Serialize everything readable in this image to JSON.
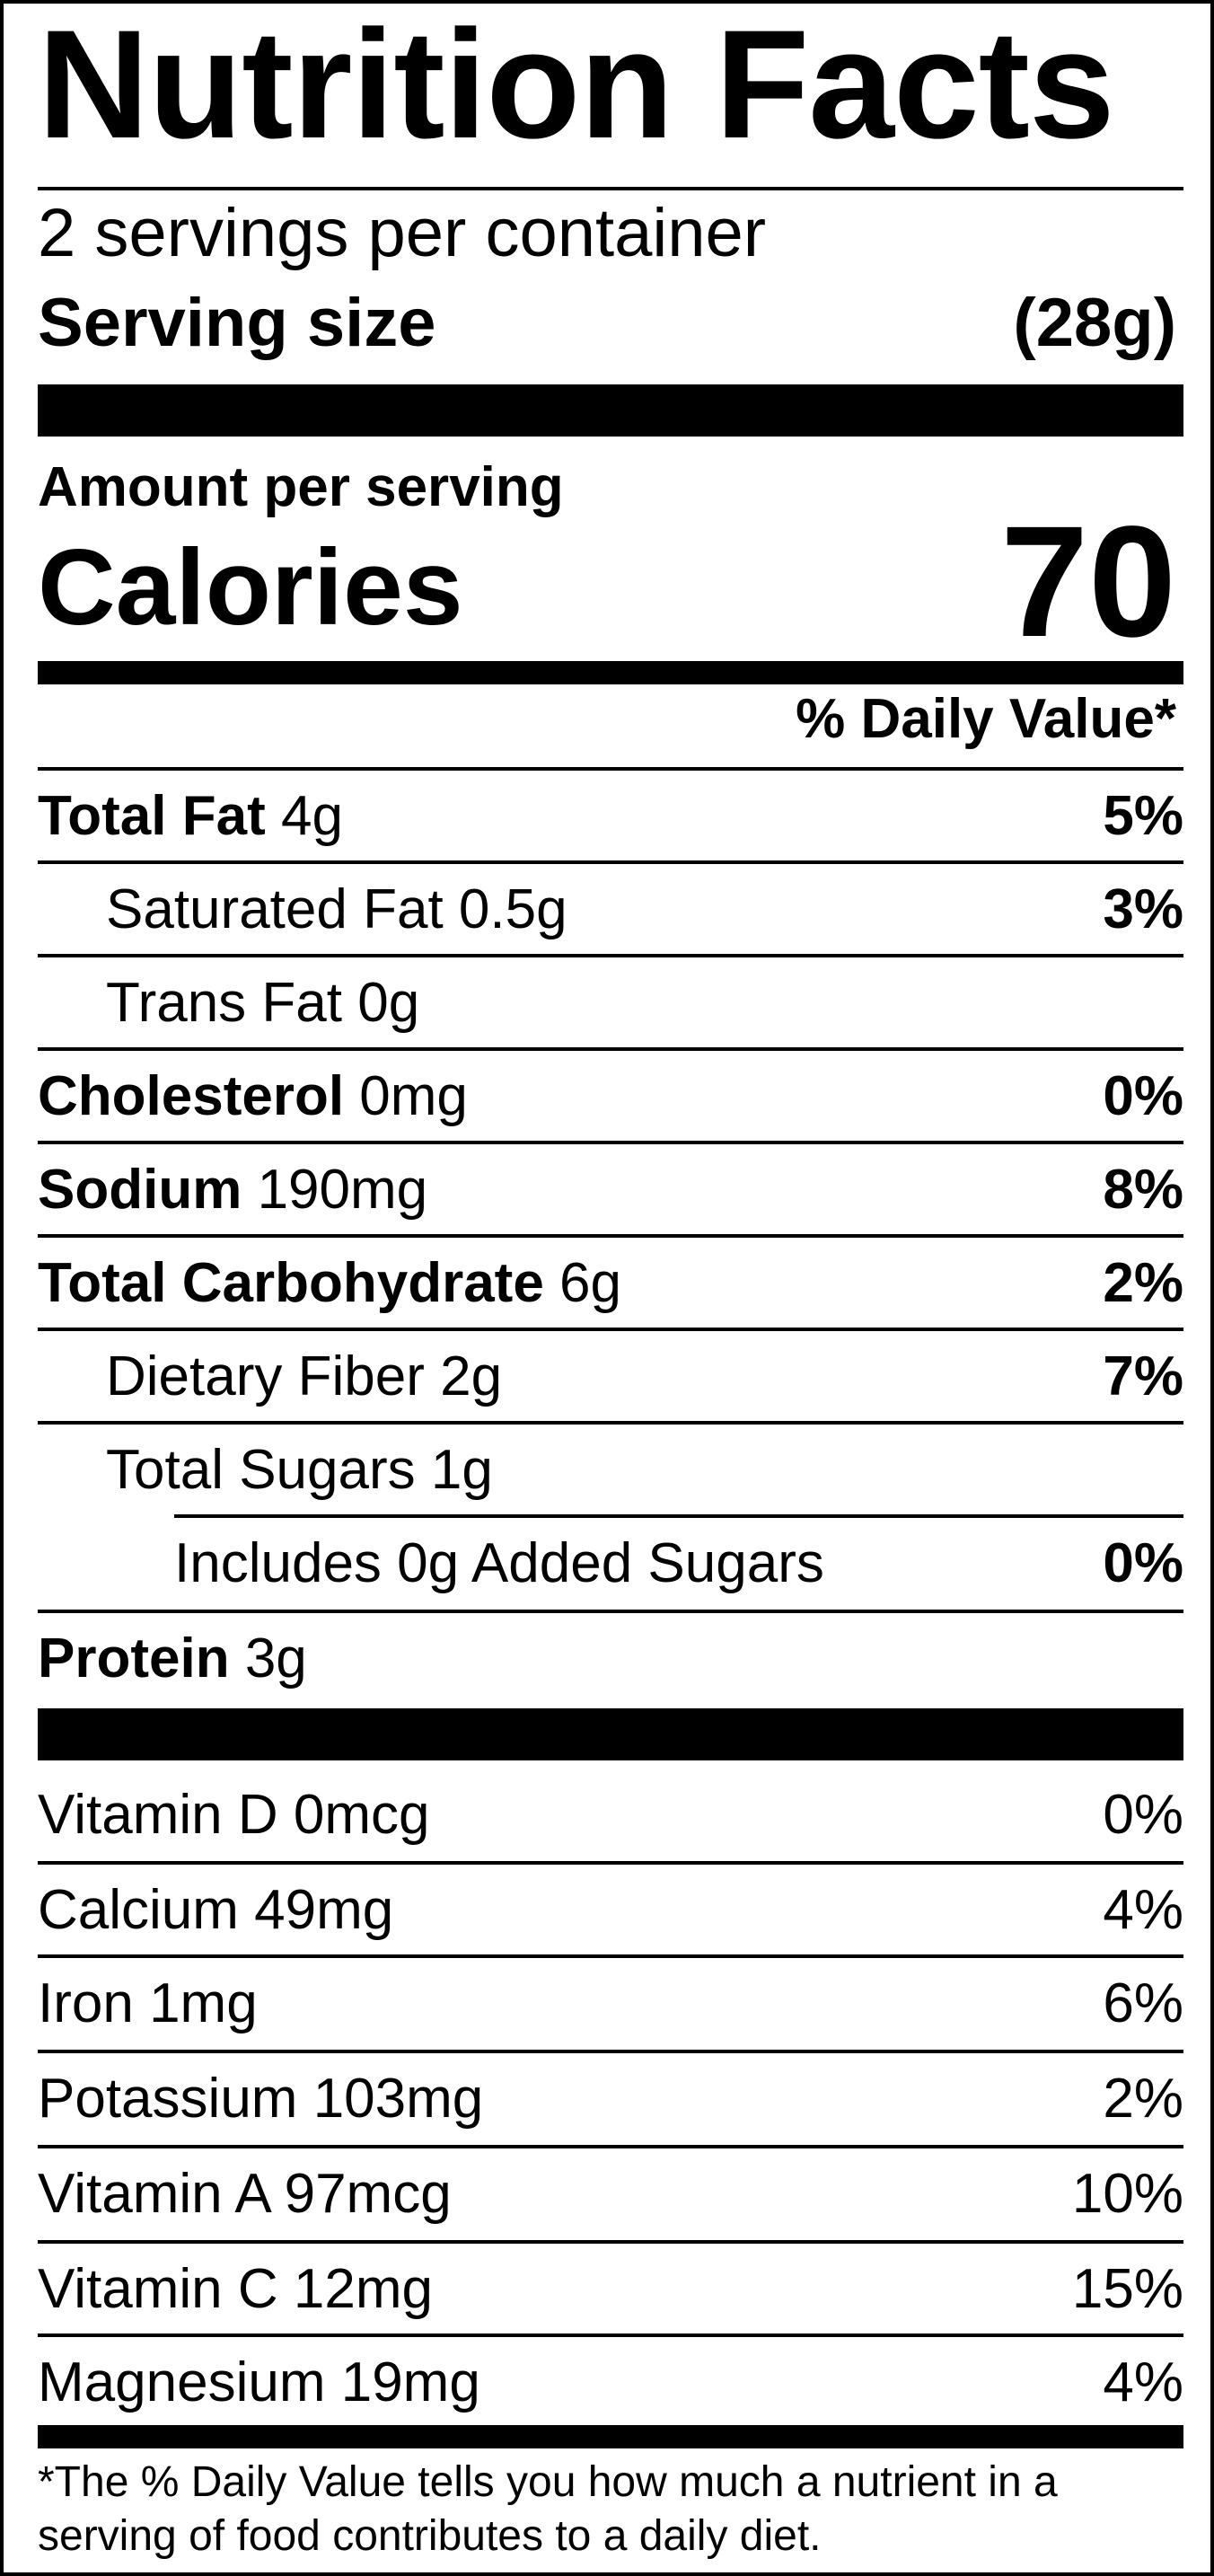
{
  "title": "Nutrition Facts",
  "servings_per_container": "2 servings per container",
  "serving_size": {
    "label": "Serving size",
    "value": "(28g)"
  },
  "amount_per_serving": "Amount per serving",
  "calories": {
    "label": "Calories",
    "value": "70"
  },
  "daily_value_header": "% Daily Value*",
  "nutrients": [
    {
      "name": "Total Fat",
      "amount": "4g",
      "dv": "5%"
    },
    {
      "name": "Saturated Fat",
      "amount": "0.5g",
      "dv": "3%"
    },
    {
      "name": "Trans Fat",
      "amount": "0g",
      "dv": ""
    },
    {
      "name": "Cholesterol",
      "amount": "0mg",
      "dv": "0%"
    },
    {
      "name": "Sodium",
      "amount": "190mg",
      "dv": "8%"
    },
    {
      "name": "Total Carbohydrate",
      "amount": "6g",
      "dv": "2%"
    },
    {
      "name": "Dietary Fiber",
      "amount": "2g",
      "dv": "7%"
    },
    {
      "name": "Total Sugars",
      "amount": "1g",
      "dv": ""
    },
    {
      "name": "Includes 0g Added Sugars",
      "amount": "",
      "dv": "0%"
    },
    {
      "name": "Protein",
      "amount": "3g",
      "dv": ""
    }
  ],
  "vitamins": [
    {
      "name": "Vitamin D",
      "amount": "0mcg",
      "dv": "0%"
    },
    {
      "name": "Calcium",
      "amount": "49mg",
      "dv": "4%"
    },
    {
      "name": "Iron",
      "amount": "1mg",
      "dv": "6%"
    },
    {
      "name": "Potassium",
      "amount": "103mg",
      "dv": "2%"
    },
    {
      "name": "Vitamin A",
      "amount": "97mcg",
      "dv": "10%"
    },
    {
      "name": "Vitamin C",
      "amount": "12mg",
      "dv": "15%"
    },
    {
      "name": "Magnesium",
      "amount": "19mg",
      "dv": "4%"
    }
  ],
  "footnote": "*The % Daily Value tells you how much a nutrient in a serving of food contributes to a daily diet."
}
